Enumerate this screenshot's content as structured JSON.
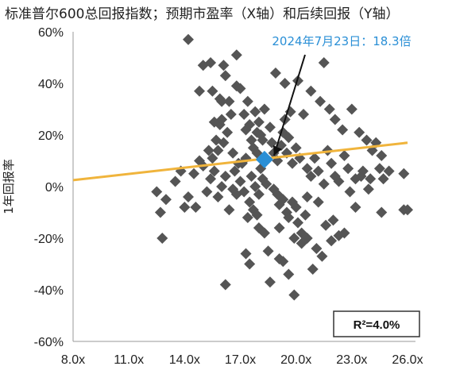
{
  "chart_data": {
    "type": "scatter",
    "title": "标准普尔600总回报指数；预期市盈率（X轴）和后续回报（Y轴）",
    "xlabel": "",
    "ylabel": "1年回报率",
    "xlim": [
      8,
      26
    ],
    "ylim": [
      -60,
      60
    ],
    "x_ticks": [
      "8.0x",
      "11.0x",
      "14.0x",
      "17.0x",
      "20.0x",
      "23.0x",
      "26.0x"
    ],
    "y_ticks": [
      "60%",
      "40%",
      "20%",
      "0%",
      "-20%",
      "-40%",
      "-60%"
    ],
    "grid": false,
    "colors": {
      "points": "#555555",
      "trend": "#f0b43c",
      "highlight": "#2a8fd6",
      "axis": "#999999"
    },
    "annotation": {
      "text": "2024年7月23日：18.3倍",
      "x": 18.3,
      "y": 10.5
    },
    "r_squared_label": "R²=4.0%",
    "trendline": {
      "x": [
        8,
        26
      ],
      "y": [
        2.5,
        17.0
      ]
    },
    "series": [
      {
        "points": [
          [
            12.5,
            -2
          ],
          [
            12.7,
            -10
          ],
          [
            13.0,
            -5
          ],
          [
            12.8,
            -20
          ],
          [
            13.5,
            2
          ],
          [
            13.8,
            6
          ],
          [
            14.2,
            -4
          ],
          [
            14.0,
            -8
          ],
          [
            14.5,
            5
          ],
          [
            14.8,
            10
          ],
          [
            14.6,
            -8
          ],
          [
            15.0,
            8
          ],
          [
            14.2,
            57
          ],
          [
            15.0,
            47
          ],
          [
            15.4,
            48
          ],
          [
            16.1,
            47
          ],
          [
            16.8,
            51
          ],
          [
            16.2,
            43
          ],
          [
            14.8,
            37
          ],
          [
            15.5,
            37
          ],
          [
            15.9,
            34
          ],
          [
            16.0,
            33
          ],
          [
            16.4,
            33
          ],
          [
            16.8,
            39
          ],
          [
            17.0,
            38
          ],
          [
            15.6,
            25
          ],
          [
            15.7,
            18
          ],
          [
            15.8,
            14
          ],
          [
            15.9,
            24
          ],
          [
            16.0,
            26
          ],
          [
            16.1,
            17
          ],
          [
            16.3,
            21
          ],
          [
            16.5,
            28
          ],
          [
            16.6,
            13
          ],
          [
            16.7,
            6
          ],
          [
            16.9,
            9
          ],
          [
            15.5,
            11
          ],
          [
            15.3,
            14
          ],
          [
            15.2,
            -2
          ],
          [
            15.4,
            3
          ],
          [
            15.6,
            6
          ],
          [
            15.8,
            -4
          ],
          [
            16.0,
            0
          ],
          [
            16.2,
            4
          ],
          [
            16.4,
            -9
          ],
          [
            16.6,
            -1
          ],
          [
            16.8,
            -3
          ],
          [
            17.0,
            2
          ],
          [
            17.1,
            9
          ],
          [
            17.3,
            11
          ],
          [
            17.2,
            28
          ],
          [
            17.3,
            22
          ],
          [
            17.5,
            24
          ],
          [
            17.6,
            18
          ],
          [
            17.7,
            15
          ],
          [
            17.8,
            29
          ],
          [
            17.9,
            21
          ],
          [
            18.0,
            25
          ],
          [
            18.1,
            20
          ],
          [
            18.2,
            18
          ],
          [
            18.3,
            30
          ],
          [
            18.6,
            23
          ],
          [
            17.4,
            33
          ],
          [
            17.6,
            4
          ],
          [
            17.8,
            0
          ],
          [
            17.5,
            -6
          ],
          [
            17.7,
            -9
          ],
          [
            17.9,
            -11
          ],
          [
            18.0,
            -3
          ],
          [
            18.2,
            3
          ],
          [
            18.4,
            1
          ],
          [
            18.1,
            7
          ],
          [
            17.9,
            13
          ],
          [
            17.2,
            -2
          ],
          [
            17.4,
            -12
          ],
          [
            17.3,
            -26
          ],
          [
            17.5,
            -30
          ],
          [
            18.0,
            -16
          ],
          [
            18.3,
            -18
          ],
          [
            18.5,
            -25
          ],
          [
            18.6,
            -37
          ],
          [
            19.1,
            -28
          ],
          [
            19.3,
            -29
          ],
          [
            19.6,
            -34
          ],
          [
            19.9,
            -42
          ],
          [
            16.2,
            -38
          ],
          [
            19.1,
            -16
          ],
          [
            18.7,
            17
          ],
          [
            18.8,
            13
          ],
          [
            19.0,
            10
          ],
          [
            19.2,
            16
          ],
          [
            19.3,
            21
          ],
          [
            19.5,
            13
          ],
          [
            19.6,
            19
          ],
          [
            19.8,
            9
          ],
          [
            20.0,
            15
          ],
          [
            20.2,
            11
          ],
          [
            19.4,
            26
          ],
          [
            19.7,
            29
          ],
          [
            20.4,
            28
          ],
          [
            18.8,
            -1
          ],
          [
            19.0,
            -3
          ],
          [
            19.1,
            -7
          ],
          [
            19.3,
            -5
          ],
          [
            19.5,
            -10
          ],
          [
            19.6,
            -12
          ],
          [
            19.8,
            -6
          ],
          [
            20.0,
            -8
          ],
          [
            20.1,
            -14
          ],
          [
            20.3,
            -18
          ],
          [
            20.5,
            -11
          ],
          [
            20.6,
            -20
          ],
          [
            19.9,
            -20
          ],
          [
            18.9,
            44
          ],
          [
            19.4,
            40
          ],
          [
            20.1,
            41
          ],
          [
            20.8,
            37
          ],
          [
            21.5,
            48
          ],
          [
            21.3,
            33
          ],
          [
            21.8,
            30
          ],
          [
            22.1,
            26
          ],
          [
            20.6,
            7
          ],
          [
            20.8,
            4
          ],
          [
            21.0,
            11
          ],
          [
            21.2,
            6
          ],
          [
            21.5,
            1
          ],
          [
            21.7,
            14
          ],
          [
            21.9,
            9
          ],
          [
            22.1,
            4
          ],
          [
            22.3,
            2
          ],
          [
            22.6,
            12
          ],
          [
            22.8,
            7
          ],
          [
            23.2,
            3
          ],
          [
            21.6,
            -15
          ],
          [
            21.9,
            -21
          ],
          [
            22.0,
            -13
          ],
          [
            22.3,
            -19
          ],
          [
            22.6,
            -18
          ],
          [
            21.4,
            -27
          ],
          [
            21.1,
            -24
          ],
          [
            20.9,
            -32
          ],
          [
            20.3,
            -22
          ],
          [
            22.5,
            22
          ],
          [
            23.0,
            30
          ],
          [
            23.4,
            21
          ],
          [
            23.8,
            18
          ],
          [
            24.1,
            14
          ],
          [
            24.3,
            17
          ],
          [
            24.6,
            12
          ],
          [
            23.6,
            6
          ],
          [
            24.0,
            3
          ],
          [
            24.5,
            7
          ],
          [
            25.0,
            6
          ],
          [
            25.8,
            5
          ],
          [
            23.2,
            -8
          ],
          [
            24.6,
            -10
          ],
          [
            25.8,
            -9
          ],
          [
            26.0,
            -9
          ],
          [
            24.7,
            3
          ],
          [
            23.9,
            -1
          ],
          [
            23.5,
            4
          ],
          [
            22.9,
            -2
          ],
          [
            21.2,
            -6
          ],
          [
            20.6,
            -4
          ]
        ]
      }
    ]
  }
}
